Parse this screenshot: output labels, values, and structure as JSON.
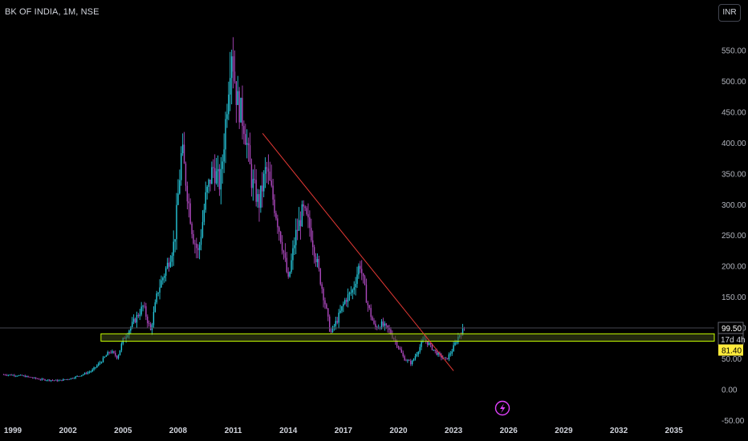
{
  "header": {
    "symbol_title": "BK OF INDIA, 1M, NSE",
    "currency_label": "INR"
  },
  "colors": {
    "background": "#000000",
    "candle_up": "#26c6da",
    "candle_down": "#ab47bc",
    "trendline": "#e53935",
    "support_zone_border": "#c6ff00",
    "support_zone_fill": "#3f4a1a",
    "last_price_line": "#434651",
    "low_label_bg": "#ffeb3b"
  },
  "icons": {
    "lightning": "lightning-icon"
  },
  "chart_data": {
    "type": "candlestick",
    "title": "BK OF INDIA, 1M, NSE",
    "y_axis": {
      "min": -50,
      "max": 600,
      "ticks": [
        -50,
        0,
        50,
        100,
        150,
        200,
        250,
        300,
        350,
        400,
        450,
        500,
        550
      ],
      "tick_labels": [
        "-50.00",
        "0.00",
        "50.00",
        "100.00",
        "150.00",
        "200.00",
        "250.00",
        "300.00",
        "350.00",
        "400.00",
        "450.00",
        "500.00",
        "550.00"
      ]
    },
    "x_axis": {
      "min": 1998.3,
      "max": 2037.2,
      "ticks": [
        1999,
        2002,
        2005,
        2008,
        2011,
        2014,
        2017,
        2020,
        2023,
        2026,
        2029,
        2032,
        2035
      ],
      "tick_labels": [
        "1999",
        "2002",
        "2005",
        "2008",
        "2011",
        "2014",
        "2017",
        "2020",
        "2023",
        "2026",
        "2029",
        "2032",
        "2035"
      ]
    },
    "price_path": [
      [
        1998.5,
        24
      ],
      [
        1999.5,
        22
      ],
      [
        2000.5,
        16
      ],
      [
        2001.5,
        14
      ],
      [
        2002.2,
        18
      ],
      [
        2002.8,
        24
      ],
      [
        2003.3,
        30
      ],
      [
        2003.8,
        45
      ],
      [
        2004.3,
        62
      ],
      [
        2004.7,
        52
      ],
      [
        2005.0,
        80
      ],
      [
        2005.6,
        110
      ],
      [
        2006.1,
        135
      ],
      [
        2006.5,
        95
      ],
      [
        2006.9,
        160
      ],
      [
        2007.4,
        200
      ],
      [
        2007.8,
        240
      ],
      [
        2008.2,
        390
      ],
      [
        2008.5,
        320
      ],
      [
        2008.8,
        250
      ],
      [
        2009.1,
        220
      ],
      [
        2009.5,
        310
      ],
      [
        2009.9,
        360
      ],
      [
        2010.3,
        330
      ],
      [
        2010.6,
        440
      ],
      [
        2010.9,
        560
      ],
      [
        2011.2,
        470
      ],
      [
        2011.6,
        430
      ],
      [
        2012.0,
        340
      ],
      [
        2012.4,
        300
      ],
      [
        2012.8,
        360
      ],
      [
        2013.3,
        290
      ],
      [
        2013.7,
        230
      ],
      [
        2014.0,
        175
      ],
      [
        2014.4,
        250
      ],
      [
        2014.8,
        290
      ],
      [
        2015.2,
        260
      ],
      [
        2015.6,
        200
      ],
      [
        2016.0,
        140
      ],
      [
        2016.3,
        90
      ],
      [
        2016.7,
        115
      ],
      [
        2017.1,
        145
      ],
      [
        2017.5,
        160
      ],
      [
        2017.9,
        205
      ],
      [
        2018.3,
        140
      ],
      [
        2018.7,
        100
      ],
      [
        2019.1,
        105
      ],
      [
        2019.5,
        95
      ],
      [
        2019.9,
        75
      ],
      [
        2020.3,
        50
      ],
      [
        2020.7,
        42
      ],
      [
        2021.1,
        65
      ],
      [
        2021.4,
        82
      ],
      [
        2021.8,
        68
      ],
      [
        2022.2,
        55
      ],
      [
        2022.6,
        48
      ],
      [
        2022.9,
        62
      ],
      [
        2023.3,
        88
      ],
      [
        2023.6,
        99.5
      ]
    ],
    "trendline": {
      "start": [
        2012.6,
        415
      ],
      "end": [
        2023.0,
        30
      ]
    },
    "support_zone": {
      "y_low": 78,
      "y_high": 90,
      "x_start": 2003.8
    },
    "last_price": 99.5,
    "price_labels": {
      "last": "99.50",
      "countdown": "17d 4h",
      "low_marker": "81.40"
    }
  }
}
